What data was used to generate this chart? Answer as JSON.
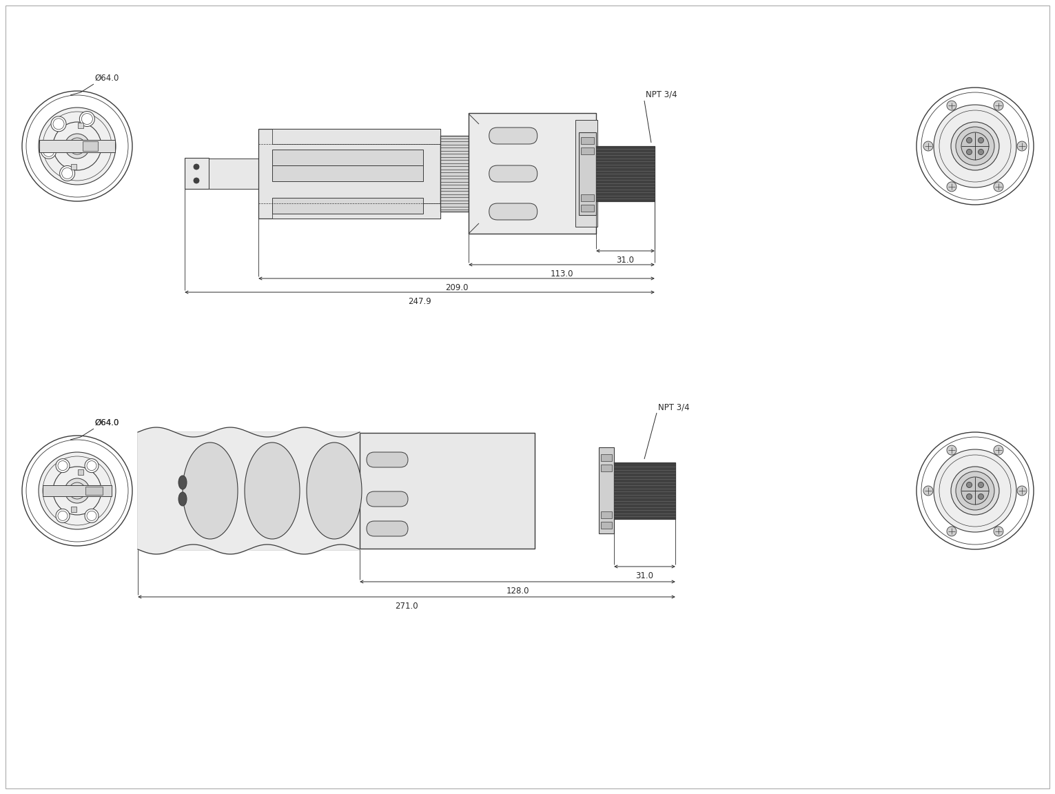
{
  "bg_color": "#ffffff",
  "line_color": "#3a3a3a",
  "dim_color": "#2a2a2a",
  "fig_width": 15.31,
  "fig_height": 11.52,
  "top_row": {
    "label_diameter": "Ø64.0",
    "label_npt": "NPT 3/4",
    "dim_31": "31.0",
    "dim_113": "113.0",
    "dim_209": "209.0",
    "dim_247": "247.9"
  },
  "bottom_row": {
    "label_diameter": "Ø64.0",
    "label_npt": "NPT 3/4",
    "dim_31": "31.0",
    "dim_128": "128.0",
    "dim_271": "271.0"
  }
}
